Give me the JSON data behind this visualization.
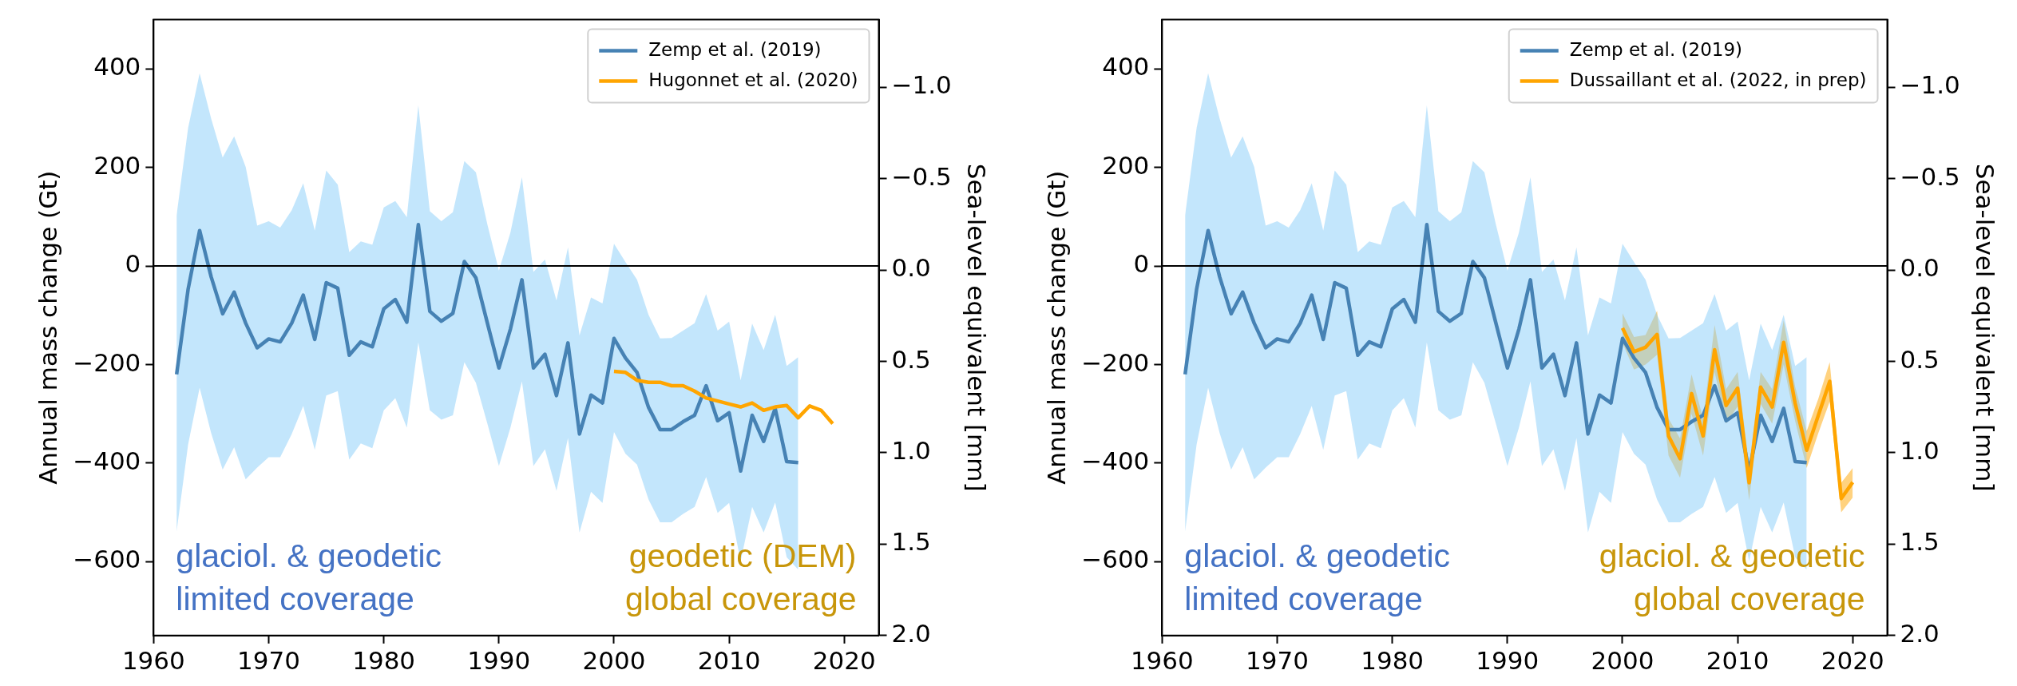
{
  "chart_data": [
    {
      "type": "line",
      "ylabel": "Annual mass change (Gt)",
      "y2label": "Sea-level equivalent [mm]",
      "xlim": [
        1960,
        2023
      ],
      "xticks": [
        1960,
        1970,
        1980,
        1990,
        2000,
        2010,
        2020
      ],
      "ylim": [
        -750,
        500
      ],
      "yticks": [
        {
          "value": -600,
          "label": "−600"
        },
        {
          "value": -400,
          "label": "−400"
        },
        {
          "value": -200,
          "label": "−200"
        },
        0,
        200,
        400
      ],
      "y2lim": [
        2.0,
        -1.37
      ],
      "y2ticks": [
        {
          "value": -1.0,
          "label": "−1.0"
        },
        {
          "value": -0.5,
          "label": "−0.5"
        },
        {
          "value": 0,
          "label": "0.0"
        },
        {
          "value": 0.5,
          "label": "0.5"
        },
        {
          "value": 1.0,
          "label": "1.0"
        },
        {
          "value": 1.5,
          "label": "1.5"
        },
        {
          "value": 2.0,
          "label": "2.0"
        }
      ],
      "legend": "top right",
      "ref_lines": [
        {
          "axis": "y",
          "value": 0,
          "color": "#000000"
        }
      ],
      "annotations": [
        "glaciol. & geodetic\nlimited coverage",
        "geodetic (DEM)\nglobal coverage"
      ],
      "series": [
        {
          "name": "Zemp et al. (2019)",
          "color": "#4682b4",
          "x": [
            1962,
            1963,
            1964,
            1965,
            1966,
            1967,
            1968,
            1969,
            1970,
            1971,
            1972,
            1973,
            1974,
            1975,
            1976,
            1977,
            1978,
            1979,
            1980,
            1981,
            1982,
            1983,
            1984,
            1985,
            1986,
            1987,
            1988,
            1989,
            1990,
            1991,
            1992,
            1993,
            1994,
            1995,
            1996,
            1997,
            1998,
            1999,
            2000,
            2001,
            2002,
            2003,
            2004,
            2005,
            2006,
            2007,
            2008,
            2009,
            2010,
            2011,
            2012,
            2013,
            2014,
            2015,
            2016
          ],
          "values": [
            -220,
            -47,
            72,
            -22,
            -97,
            -53,
            -116,
            -166,
            -148,
            -154,
            -116,
            -59,
            -149,
            -34,
            -45,
            -181,
            -154,
            -164,
            -87,
            -68,
            -114,
            84,
            -92,
            -112,
            -96,
            9,
            -24,
            -116,
            -207,
            -128,
            -28,
            -207,
            -179,
            -263,
            -156,
            -341,
            -262,
            -278,
            -147,
            -187,
            -216,
            -287,
            -332,
            -332,
            -316,
            -303,
            -243,
            -314,
            -298,
            -416,
            -303,
            -356,
            -289,
            -397,
            -399
          ],
          "upper": [
            103,
            280,
            391,
            299,
            220,
            263,
            201,
            82,
            91,
            78,
            113,
            168,
            72,
            194,
            165,
            28,
            50,
            43,
            119,
            132,
            99,
            326,
            111,
            91,
            109,
            213,
            190,
            84,
            -9,
            68,
            180,
            -12,
            13,
            -70,
            38,
            -141,
            -64,
            -76,
            45,
            8,
            -28,
            -99,
            -147,
            -146,
            -131,
            -116,
            -57,
            -131,
            -113,
            -232,
            -117,
            -171,
            -99,
            -203,
            -185
          ],
          "lower": [
            -539,
            -362,
            -247,
            -339,
            -413,
            -368,
            -433,
            -409,
            -388,
            -388,
            -341,
            -284,
            -373,
            -263,
            -254,
            -393,
            -360,
            -370,
            -293,
            -268,
            -328,
            -155,
            -293,
            -312,
            -303,
            -195,
            -237,
            -320,
            -406,
            -328,
            -234,
            -406,
            -372,
            -456,
            -349,
            -541,
            -458,
            -481,
            -337,
            -381,
            -403,
            -474,
            -520,
            -520,
            -503,
            -489,
            -428,
            -501,
            -481,
            -599,
            -489,
            -541,
            -480,
            -591,
            -616
          ]
        },
        {
          "name": "Hugonnet et al. (2020)",
          "color": "#ffa500",
          "x": [
            2000,
            2001,
            2002,
            2003,
            2004,
            2005,
            2006,
            2007,
            2008,
            2009,
            2010,
            2011,
            2012,
            2013,
            2014,
            2015,
            2016,
            2017,
            2018,
            2019
          ],
          "values": [
            -214,
            -216,
            -232,
            -236,
            -236,
            -243,
            -243,
            -254,
            -268,
            -274,
            -280,
            -286,
            -278,
            -293,
            -286,
            -283,
            -308,
            -284,
            -293,
            -320
          ]
        }
      ]
    },
    {
      "type": "line",
      "ylabel": "Annual mass change (Gt)",
      "y2label": "Sea-level equivalent [mm]",
      "xlim": [
        1960,
        2023
      ],
      "xticks": [
        1960,
        1970,
        1980,
        1990,
        2000,
        2010,
        2020
      ],
      "ylim": [
        -750,
        500
      ],
      "yticks": [
        {
          "value": -600,
          "label": "−600"
        },
        {
          "value": -400,
          "label": "−400"
        },
        {
          "value": -200,
          "label": "−200"
        },
        0,
        200,
        400
      ],
      "y2lim": [
        2.0,
        -1.37
      ],
      "y2ticks": [
        {
          "value": -1.0,
          "label": "−1.0"
        },
        {
          "value": -0.5,
          "label": "−0.5"
        },
        {
          "value": 0,
          "label": "0.0"
        },
        {
          "value": 0.5,
          "label": "0.5"
        },
        {
          "value": 1.0,
          "label": "1.0"
        },
        {
          "value": 1.5,
          "label": "1.5"
        },
        {
          "value": 2.0,
          "label": "2.0"
        }
      ],
      "legend": "top right",
      "ref_lines": [
        {
          "axis": "y",
          "value": 0,
          "color": "#000000"
        }
      ],
      "annotations": [
        "glaciol. & geodetic\nlimited coverage",
        "glaciol. & geodetic\nglobal coverage"
      ],
      "series": [
        {
          "name": "Zemp et al. (2019)",
          "color": "#4682b4",
          "x": [
            1962,
            1963,
            1964,
            1965,
            1966,
            1967,
            1968,
            1969,
            1970,
            1971,
            1972,
            1973,
            1974,
            1975,
            1976,
            1977,
            1978,
            1979,
            1980,
            1981,
            1982,
            1983,
            1984,
            1985,
            1986,
            1987,
            1988,
            1989,
            1990,
            1991,
            1992,
            1993,
            1994,
            1995,
            1996,
            1997,
            1998,
            1999,
            2000,
            2001,
            2002,
            2003,
            2004,
            2005,
            2006,
            2007,
            2008,
            2009,
            2010,
            2011,
            2012,
            2013,
            2014,
            2015,
            2016
          ],
          "values": [
            -220,
            -47,
            72,
            -22,
            -97,
            -53,
            -116,
            -166,
            -148,
            -154,
            -116,
            -59,
            -149,
            -34,
            -45,
            -181,
            -154,
            -164,
            -87,
            -68,
            -114,
            84,
            -92,
            -112,
            -96,
            9,
            -24,
            -116,
            -207,
            -128,
            -28,
            -207,
            -179,
            -263,
            -156,
            -341,
            -262,
            -278,
            -147,
            -187,
            -216,
            -287,
            -332,
            -332,
            -316,
            -303,
            -243,
            -314,
            -298,
            -416,
            -303,
            -356,
            -289,
            -397,
            -399
          ],
          "upper": [
            103,
            280,
            391,
            299,
            220,
            263,
            201,
            82,
            91,
            78,
            113,
            168,
            72,
            194,
            165,
            28,
            50,
            43,
            119,
            132,
            99,
            326,
            111,
            91,
            109,
            213,
            190,
            84,
            -9,
            68,
            180,
            -12,
            13,
            -70,
            38,
            -141,
            -64,
            -76,
            45,
            8,
            -28,
            -99,
            -147,
            -146,
            -131,
            -116,
            -57,
            -131,
            -113,
            -232,
            -117,
            -171,
            -99,
            -203,
            -185
          ],
          "lower": [
            -539,
            -362,
            -247,
            -339,
            -413,
            -368,
            -433,
            -409,
            -388,
            -388,
            -341,
            -284,
            -373,
            -263,
            -254,
            -393,
            -360,
            -370,
            -293,
            -268,
            -328,
            -155,
            -293,
            -312,
            -303,
            -195,
            -237,
            -320,
            -406,
            -328,
            -234,
            -406,
            -372,
            -456,
            -349,
            -541,
            -458,
            -481,
            -337,
            -381,
            -403,
            -474,
            -520,
            -520,
            -503,
            -489,
            -428,
            -501,
            -481,
            -599,
            -489,
            -541,
            -480,
            -591,
            -616
          ]
        },
        {
          "name": "Dussaillant et al. (2022, in prep)",
          "color": "#ffa500",
          "x": [
            2000,
            2001,
            2002,
            2003,
            2004,
            2005,
            2006,
            2007,
            2008,
            2009,
            2010,
            2011,
            2012,
            2013,
            2014,
            2015,
            2016,
            2017,
            2018,
            2019,
            2020
          ],
          "values": [
            -126,
            -174,
            -165,
            -139,
            -345,
            -391,
            -259,
            -345,
            -170,
            -283,
            -248,
            -440,
            -246,
            -286,
            -155,
            -279,
            -374,
            -304,
            -234,
            -472,
            -439
          ],
          "upper": [
            -96,
            -144,
            -140,
            -91,
            -310,
            -350,
            -220,
            -310,
            -120,
            -250,
            -215,
            -405,
            -215,
            -250,
            -110,
            -245,
            -335,
            -270,
            -195,
            -440,
            -410
          ],
          "lower": [
            -156,
            -210,
            -200,
            -180,
            -385,
            -430,
            -300,
            -385,
            -215,
            -320,
            -285,
            -475,
            -280,
            -320,
            -200,
            -315,
            -410,
            -340,
            -275,
            -500,
            -470
          ]
        }
      ]
    }
  ]
}
